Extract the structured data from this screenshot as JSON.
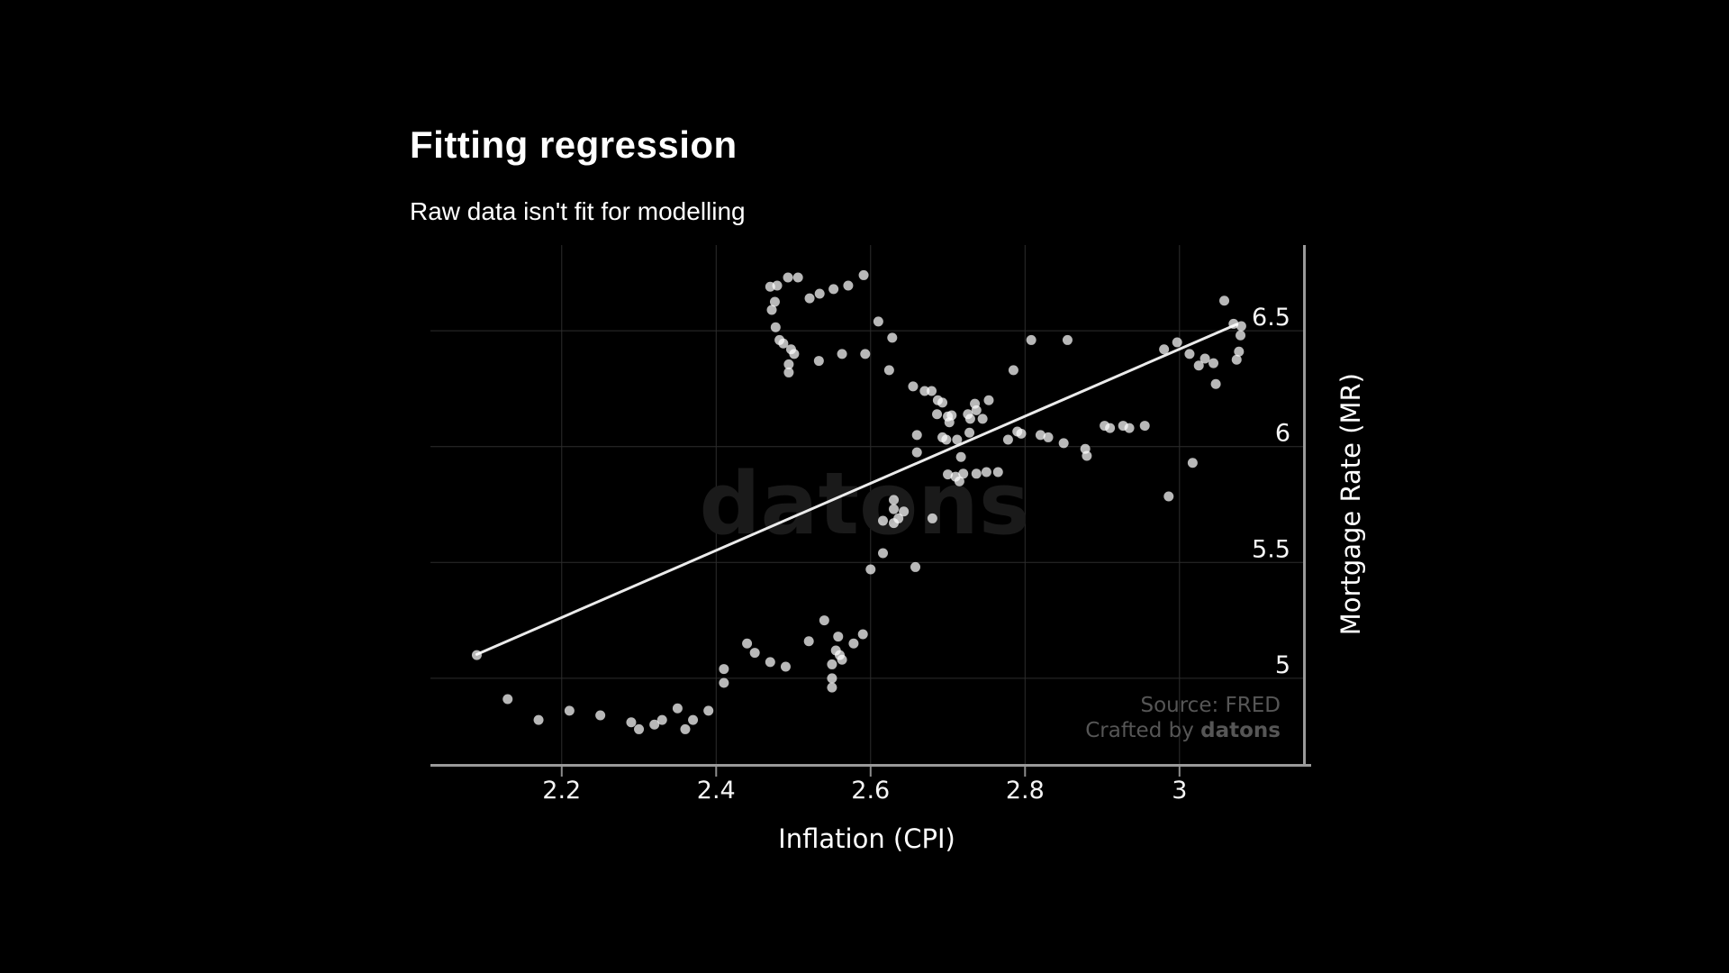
{
  "page": {
    "title": "Fitting regression",
    "subtitle": "Raw data isn't fit for modelling"
  },
  "annotations": {
    "watermark": "datons",
    "source_line": "Source: FRED",
    "credit_prefix": "Crafted by ",
    "credit_brand": "datons"
  },
  "chart_data": {
    "type": "scatter",
    "title": "Fitting regression",
    "subtitle": "Raw data isn't fit for modelling",
    "xlabel": "Inflation (CPI)",
    "ylabel": "Mortgage Rate (MR)",
    "xlim": [
      2.03,
      3.16
    ],
    "ylim": [
      4.63,
      6.87
    ],
    "x_ticks": [
      2.2,
      2.4,
      2.6,
      2.8,
      3
    ],
    "x_tick_labels": [
      "2.2",
      "2.4",
      "2.6",
      "2.8",
      "3"
    ],
    "y_ticks": [
      5,
      5.5,
      6,
      6.5
    ],
    "y_tick_labels": [
      "5",
      "5.5",
      "6",
      "6.5"
    ],
    "grid": true,
    "legend": "none",
    "colors": {
      "background": "#000000",
      "marker": "#ffffff",
      "regression_line": "#ebebeb",
      "gridline": "#2d2d2d",
      "axis_line": "#9a9a9a",
      "tick_label": "#f5f5f5",
      "watermark": "#1a1a1a",
      "source_text": "#565656"
    },
    "series": [
      {
        "name": "observations",
        "type": "scatter",
        "color": "#ffffff",
        "opacity": 0.72,
        "points": [
          [
            2.09,
            5.1
          ],
          [
            2.13,
            4.91
          ],
          [
            2.17,
            4.82
          ],
          [
            2.21,
            4.86
          ],
          [
            2.25,
            4.84
          ],
          [
            2.29,
            4.81
          ],
          [
            2.3,
            4.78
          ],
          [
            2.32,
            4.8
          ],
          [
            2.33,
            4.82
          ],
          [
            2.35,
            4.87
          ],
          [
            2.36,
            4.78
          ],
          [
            2.37,
            4.82
          ],
          [
            2.39,
            4.86
          ],
          [
            2.41,
            4.98
          ],
          [
            2.41,
            5.04
          ],
          [
            2.44,
            5.15
          ],
          [
            2.45,
            5.11
          ],
          [
            2.47,
            5.07
          ],
          [
            2.49,
            5.05
          ],
          [
            2.52,
            5.16
          ],
          [
            2.54,
            5.25
          ],
          [
            2.55,
            5.06
          ],
          [
            2.55,
            5.0
          ],
          [
            2.55,
            4.96
          ],
          [
            2.555,
            5.12
          ],
          [
            2.563,
            5.08
          ],
          [
            2.56,
            5.1
          ],
          [
            2.558,
            5.18
          ],
          [
            2.578,
            5.15
          ],
          [
            2.59,
            5.19
          ],
          [
            2.6,
            5.47
          ],
          [
            2.616,
            5.54
          ],
          [
            2.658,
            5.48
          ],
          [
            2.616,
            5.68
          ],
          [
            2.63,
            5.67
          ],
          [
            2.636,
            5.69
          ],
          [
            2.63,
            5.73
          ],
          [
            2.643,
            5.72
          ],
          [
            2.68,
            5.69
          ],
          [
            2.63,
            5.77
          ],
          [
            2.47,
            6.69
          ],
          [
            2.479,
            6.695
          ],
          [
            2.493,
            6.73
          ],
          [
            2.506,
            6.73
          ],
          [
            2.521,
            6.64
          ],
          [
            2.534,
            6.66
          ],
          [
            2.552,
            6.68
          ],
          [
            2.571,
            6.695
          ],
          [
            2.591,
            6.74
          ],
          [
            2.476,
            6.625
          ],
          [
            2.472,
            6.59
          ],
          [
            2.477,
            6.515
          ],
          [
            2.482,
            6.46
          ],
          [
            2.487,
            6.445
          ],
          [
            2.497,
            6.42
          ],
          [
            2.501,
            6.4
          ],
          [
            2.494,
            6.355
          ],
          [
            2.494,
            6.32
          ],
          [
            2.533,
            6.37
          ],
          [
            2.563,
            6.4
          ],
          [
            2.593,
            6.4
          ],
          [
            2.61,
            6.54
          ],
          [
            2.628,
            6.47
          ],
          [
            2.624,
            6.33
          ],
          [
            2.655,
            6.26
          ],
          [
            2.67,
            6.24
          ],
          [
            2.679,
            6.24
          ],
          [
            2.687,
            6.2
          ],
          [
            2.693,
            6.19
          ],
          [
            2.686,
            6.14
          ],
          [
            2.7,
            6.13
          ],
          [
            2.705,
            6.135
          ],
          [
            2.702,
            6.105
          ],
          [
            2.726,
            6.14
          ],
          [
            2.729,
            6.12
          ],
          [
            2.735,
            6.185
          ],
          [
            2.737,
            6.157
          ],
          [
            2.745,
            6.12
          ],
          [
            2.753,
            6.2
          ],
          [
            2.728,
            6.06
          ],
          [
            2.66,
            6.05
          ],
          [
            2.66,
            5.975
          ],
          [
            2.693,
            6.04
          ],
          [
            2.698,
            6.03
          ],
          [
            2.712,
            6.03
          ],
          [
            2.717,
            5.955
          ],
          [
            2.7,
            5.88
          ],
          [
            2.71,
            5.87
          ],
          [
            2.715,
            5.85
          ],
          [
            2.72,
            5.883
          ],
          [
            2.737,
            5.883
          ],
          [
            2.75,
            5.89
          ],
          [
            2.765,
            5.89
          ],
          [
            2.778,
            6.03
          ],
          [
            2.785,
            6.33
          ],
          [
            2.79,
            6.065
          ],
          [
            2.795,
            6.056
          ],
          [
            2.808,
            6.46
          ],
          [
            2.855,
            6.46
          ],
          [
            2.82,
            6.05
          ],
          [
            2.83,
            6.04
          ],
          [
            2.85,
            6.015
          ],
          [
            2.878,
            5.99
          ],
          [
            2.88,
            5.96
          ],
          [
            2.903,
            6.09
          ],
          [
            2.91,
            6.08
          ],
          [
            2.927,
            6.09
          ],
          [
            2.935,
            6.08
          ],
          [
            2.955,
            6.09
          ],
          [
            2.986,
            5.785
          ],
          [
            3.017,
            5.93
          ],
          [
            2.98,
            6.42
          ],
          [
            2.997,
            6.45
          ],
          [
            3.013,
            6.4
          ],
          [
            3.025,
            6.35
          ],
          [
            3.033,
            6.38
          ],
          [
            3.044,
            6.36
          ],
          [
            3.047,
            6.27
          ],
          [
            3.058,
            6.63
          ],
          [
            3.07,
            6.53
          ],
          [
            3.08,
            6.52
          ],
          [
            3.079,
            6.48
          ],
          [
            3.077,
            6.41
          ],
          [
            3.074,
            6.375
          ]
        ]
      },
      {
        "name": "regression-line",
        "type": "line",
        "color": "#ebebeb",
        "points": [
          [
            2.09,
            5.103
          ],
          [
            3.074,
            6.528
          ]
        ]
      }
    ]
  }
}
